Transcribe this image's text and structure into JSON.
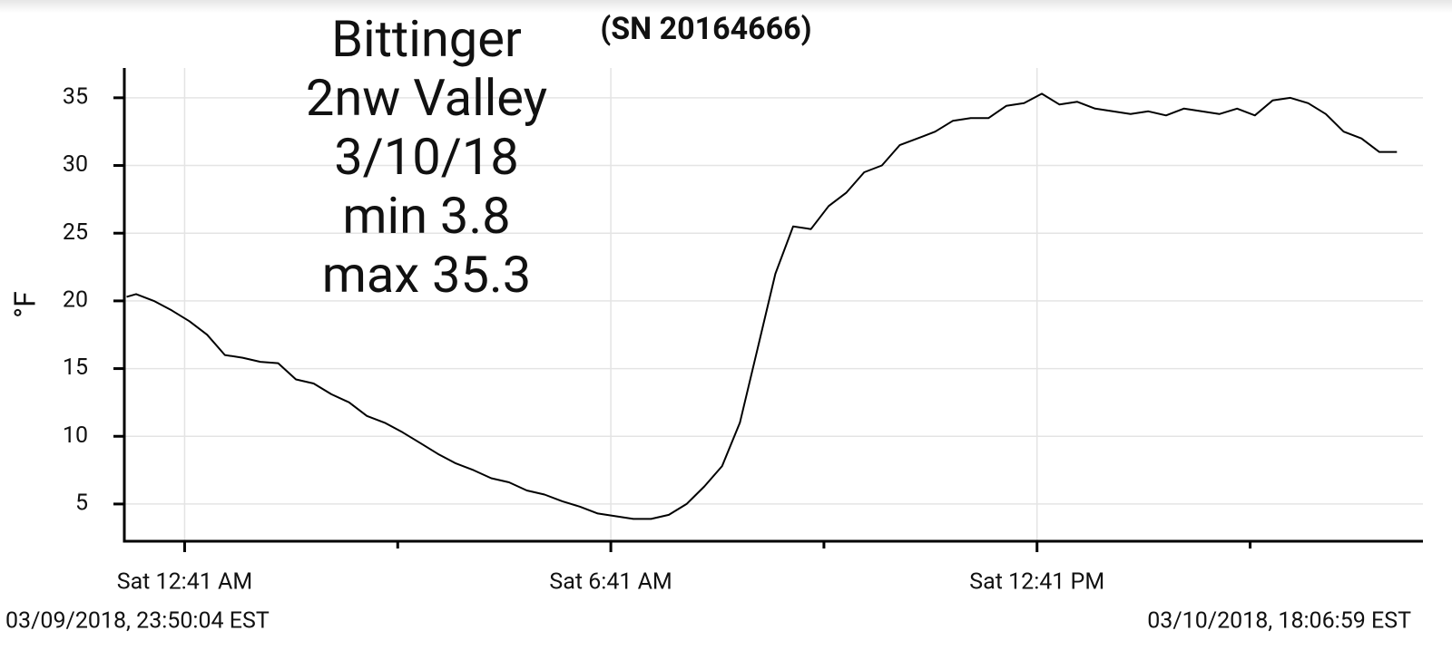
{
  "chart_data": {
    "type": "line",
    "title": "(SN 20164666)",
    "annotation": [
      "Bittinger",
      "2nw Valley",
      "3/10/18",
      "min 3.8",
      "max 35.3"
    ],
    "ylabel": "°F",
    "start_label": "03/09/2018, 23:50:04 EST",
    "end_label": "03/10/2018, 18:06:59 EST",
    "xlim": [
      "2018-03-09T23:50:04",
      "2018-03-10T18:06:59"
    ],
    "xticks": [
      {
        "value": "2018-03-10T00:41",
        "label": "Sat 12:41 AM"
      },
      {
        "value": "2018-03-10T06:41",
        "label": "Sat 6:41 AM"
      },
      {
        "value": "2018-03-10T12:41",
        "label": "Sat 12:41 PM"
      }
    ],
    "xminorticks": [
      "2018-03-10T03:41",
      "2018-03-10T09:41",
      "2018-03-10T15:41"
    ],
    "ylim": [
      2.25,
      37.2
    ],
    "yticks": [
      5,
      10,
      15,
      20,
      25,
      30,
      35
    ],
    "grid": true,
    "color": "#000000",
    "x": [
      "2018-03-09T23:52",
      "2018-03-10T00:00",
      "2018-03-10T00:15",
      "2018-03-10T00:30",
      "2018-03-10T00:45",
      "2018-03-10T01:00",
      "2018-03-10T01:15",
      "2018-03-10T01:30",
      "2018-03-10T01:45",
      "2018-03-10T02:00",
      "2018-03-10T02:15",
      "2018-03-10T02:30",
      "2018-03-10T02:45",
      "2018-03-10T03:00",
      "2018-03-10T03:15",
      "2018-03-10T03:30",
      "2018-03-10T03:45",
      "2018-03-10T04:00",
      "2018-03-10T04:15",
      "2018-03-10T04:30",
      "2018-03-10T04:45",
      "2018-03-10T05:00",
      "2018-03-10T05:15",
      "2018-03-10T05:30",
      "2018-03-10T05:45",
      "2018-03-10T06:00",
      "2018-03-10T06:15",
      "2018-03-10T06:30",
      "2018-03-10T06:45",
      "2018-03-10T07:00",
      "2018-03-10T07:15",
      "2018-03-10T07:30",
      "2018-03-10T07:45",
      "2018-03-10T08:00",
      "2018-03-10T08:15",
      "2018-03-10T08:30",
      "2018-03-10T08:45",
      "2018-03-10T09:00",
      "2018-03-10T09:15",
      "2018-03-10T09:30",
      "2018-03-10T09:45",
      "2018-03-10T10:00",
      "2018-03-10T10:15",
      "2018-03-10T10:30",
      "2018-03-10T10:45",
      "2018-03-10T11:00",
      "2018-03-10T11:15",
      "2018-03-10T11:30",
      "2018-03-10T11:45",
      "2018-03-10T12:00",
      "2018-03-10T12:15",
      "2018-03-10T12:30",
      "2018-03-10T12:45",
      "2018-03-10T13:00",
      "2018-03-10T13:15",
      "2018-03-10T13:30",
      "2018-03-10T13:45",
      "2018-03-10T14:00",
      "2018-03-10T14:15",
      "2018-03-10T14:30",
      "2018-03-10T14:45",
      "2018-03-10T15:00",
      "2018-03-10T15:15",
      "2018-03-10T15:30",
      "2018-03-10T15:45",
      "2018-03-10T16:00",
      "2018-03-10T16:15",
      "2018-03-10T16:30",
      "2018-03-10T16:45",
      "2018-03-10T17:00",
      "2018-03-10T17:15",
      "2018-03-10T17:30",
      "2018-03-10T17:45"
    ],
    "values": [
      20.3,
      20.5,
      20.0,
      19.3,
      18.5,
      17.5,
      16.0,
      15.8,
      15.5,
      15.4,
      14.2,
      13.9,
      13.1,
      12.5,
      11.5,
      11.0,
      10.3,
      9.5,
      8.7,
      8.0,
      7.5,
      6.9,
      6.6,
      6.0,
      5.7,
      5.2,
      4.8,
      4.3,
      4.1,
      3.9,
      3.9,
      4.2,
      5.0,
      6.3,
      7.8,
      11.0,
      16.5,
      22.0,
      25.5,
      25.3,
      27.0,
      28.0,
      29.5,
      30.0,
      31.5,
      32.0,
      32.5,
      33.3,
      33.5,
      33.5,
      34.4,
      34.6,
      35.3,
      34.5,
      34.7,
      34.2,
      34.0,
      33.8,
      34.0,
      33.7,
      34.2,
      34.0,
      33.8,
      34.2,
      33.7,
      34.8,
      35.0,
      34.6,
      33.8,
      32.5,
      32.0,
      31.0,
      31.0
    ]
  }
}
